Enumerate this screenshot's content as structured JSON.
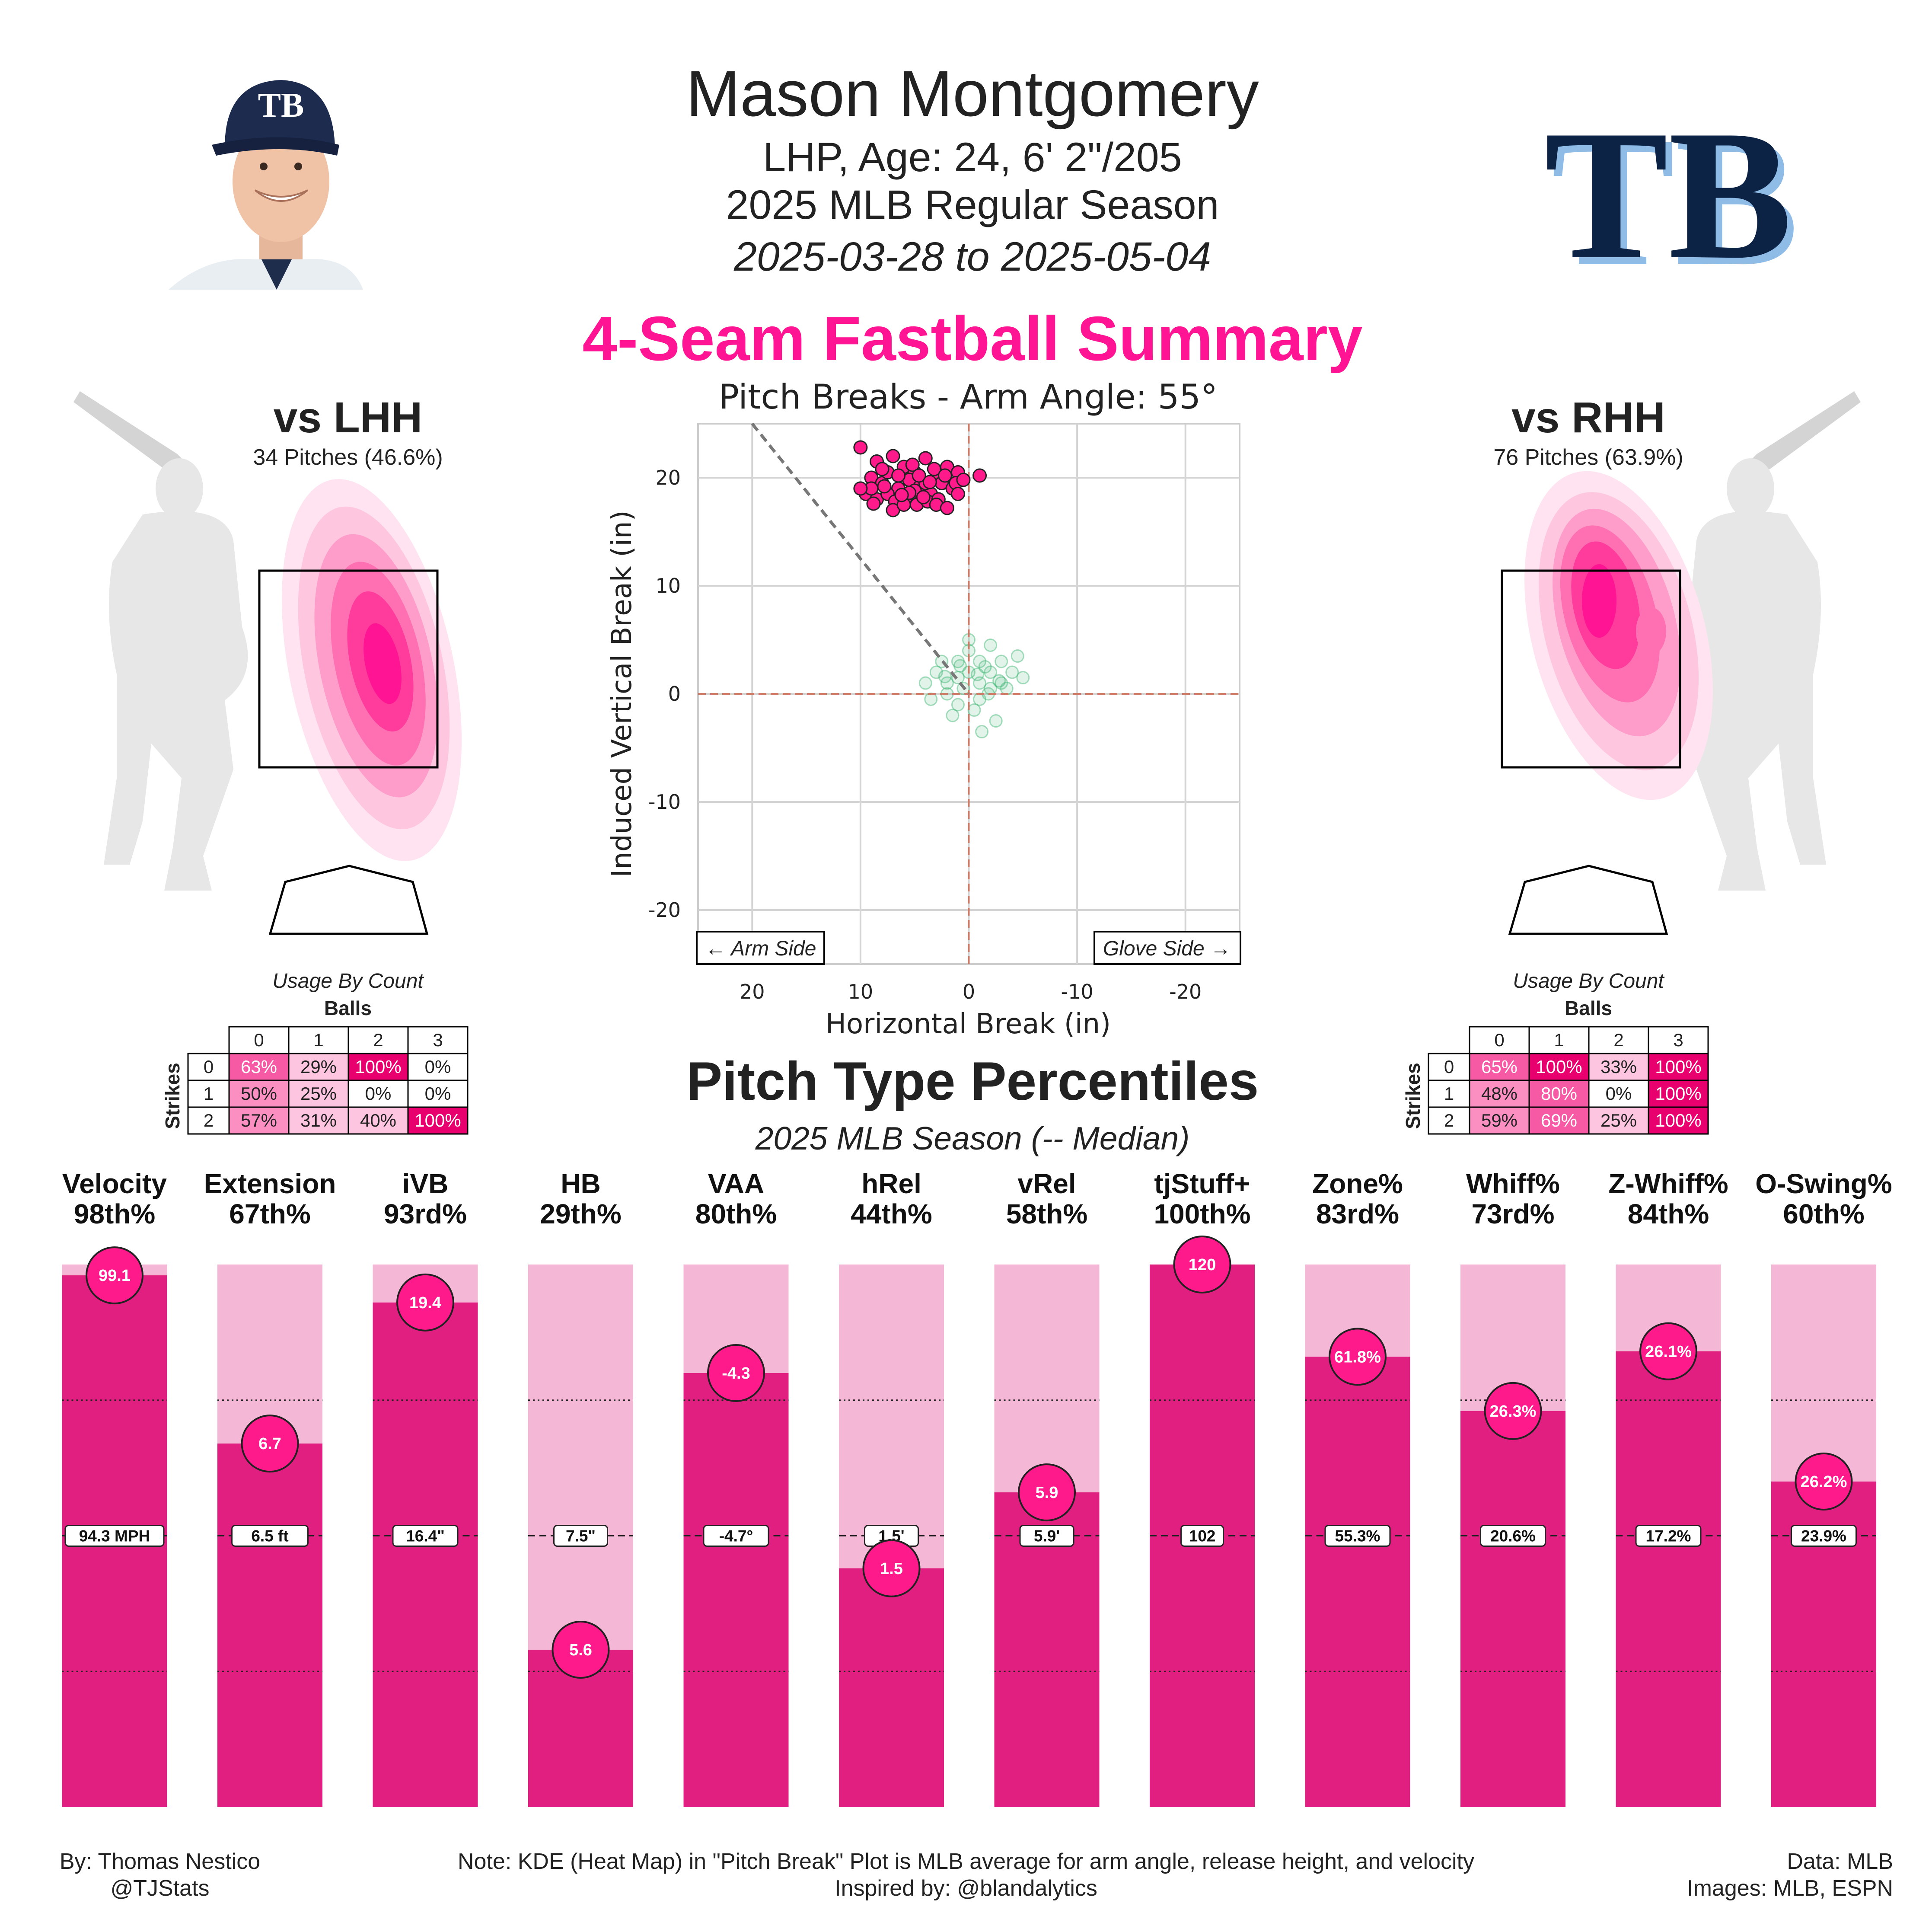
{
  "header": {
    "name": "Mason Montgomery",
    "line1": "LHP, Age: 24, 6' 2\"/205",
    "line2": "2025 MLB Regular Season",
    "line3": "2025-03-28 to 2025-05-04",
    "team_logo_text": "TB",
    "cap_logo_text": "TB"
  },
  "pitch_title": "4-Seam Fastball Summary",
  "colors": {
    "accent": "#ff1493",
    "bar_fill": "#e01f80",
    "bar_bg": "#f4b7d6",
    "kde_green": "#3cb371"
  },
  "lhh": {
    "title": "vs LHH",
    "sub": "34 Pitches (46.6%)",
    "usage_title": "Usage By Count",
    "balls_label": "Balls",
    "strikes_label": "Strikes",
    "col_headers": [
      "0",
      "1",
      "2",
      "3"
    ],
    "row_headers": [
      "0",
      "1",
      "2"
    ],
    "cells": [
      [
        "63%",
        "29%",
        "100%",
        "0%"
      ],
      [
        "50%",
        "25%",
        "0%",
        "0%"
      ],
      [
        "57%",
        "31%",
        "40%",
        "100%"
      ]
    ]
  },
  "rhh": {
    "title": "vs RHH",
    "sub": "76 Pitches (63.9%)",
    "usage_title": "Usage By Count",
    "balls_label": "Balls",
    "strikes_label": "Strikes",
    "col_headers": [
      "0",
      "1",
      "2",
      "3"
    ],
    "row_headers": [
      "0",
      "1",
      "2"
    ],
    "cells": [
      [
        "65%",
        "100%",
        "33%",
        "100%"
      ],
      [
        "48%",
        "80%",
        "0%",
        "100%"
      ],
      [
        "59%",
        "69%",
        "25%",
        "100%"
      ]
    ]
  },
  "section2": {
    "title": "Pitch Type Percentiles",
    "subtitle": "2025 MLB Season (-- Median)"
  },
  "footer": {
    "left1": "By: Thomas Nestico",
    "left2": "@TJStats",
    "center1": "Note: KDE (Heat Map) in \"Pitch Break\" Plot is MLB average for arm angle, release height, and velocity",
    "center2": "Inspired by: @blandalytics",
    "right1": "Data: MLB",
    "right2": "Images: MLB, ESPN"
  },
  "chart_data": [
    {
      "type": "scatter",
      "title": "Pitch Breaks - Arm Angle: 55°",
      "xlabel": "Horizontal Break (in)",
      "ylabel": "Induced Vertical Break (in)",
      "xlim": [
        25,
        -25
      ],
      "ylim": [
        -25,
        25
      ],
      "x_ticks": [
        20,
        10,
        0,
        -10,
        -20
      ],
      "y_ticks": [
        20,
        10,
        0,
        -10,
        -20
      ],
      "grid": true,
      "annotations": [
        "← Arm Side",
        "Glove Side →"
      ],
      "arm_angle_line": {
        "from": [
          20,
          25
        ],
        "to": [
          0,
          0
        ]
      },
      "series": [
        {
          "points": [
            [
              10,
              22.8
            ],
            [
              8.5,
              21.5
            ],
            [
              7,
              22
            ],
            [
              6,
              21
            ],
            [
              5,
              20.5
            ],
            [
              4,
              21.8
            ],
            [
              3,
              20
            ],
            [
              2,
              21
            ],
            [
              1,
              20.5
            ],
            [
              9,
              20
            ],
            [
              8,
              19.5
            ],
            [
              7.5,
              20.5
            ],
            [
              6.5,
              19
            ],
            [
              5.5,
              19.8
            ],
            [
              4.5,
              19.2
            ],
            [
              3.5,
              18.5
            ],
            [
              2.5,
              19.5
            ],
            [
              1.5,
              19
            ],
            [
              9.5,
              18.5
            ],
            [
              8.5,
              18
            ],
            [
              7.5,
              18.5
            ],
            [
              6.8,
              17.8
            ],
            [
              5.8,
              18.2
            ],
            [
              4.8,
              17.5
            ],
            [
              3.8,
              17.8
            ],
            [
              2.8,
              18
            ],
            [
              7,
              17
            ],
            [
              6,
              17.5
            ],
            [
              5,
              18.8
            ],
            [
              4,
              19.5
            ],
            [
              8,
              20.8
            ],
            [
              6.5,
              20.2
            ],
            [
              5.2,
              21.2
            ],
            [
              3.2,
              20.8
            ],
            [
              2.2,
              20.2
            ],
            [
              1.2,
              19.5
            ],
            [
              9,
              19
            ],
            [
              7.8,
              19.2
            ],
            [
              5.5,
              18.6
            ],
            [
              4.2,
              18.2
            ],
            [
              3,
              17.5
            ],
            [
              1,
              18.5
            ],
            [
              0.5,
              19.8
            ],
            [
              -1,
              20.2
            ],
            [
              10,
              19
            ],
            [
              8.8,
              17.6
            ],
            [
              6.2,
              18.4
            ],
            [
              2,
              17.2
            ],
            [
              4.6,
              20.2
            ],
            [
              3.6,
              19.6
            ]
          ]
        },
        {
          "name": "MLB average (KDE)",
          "points": [
            [
              3,
              2
            ],
            [
              2,
              1
            ],
            [
              1,
              3
            ],
            [
              0,
              2
            ],
            [
              -1,
              1
            ],
            [
              -2,
              2
            ],
            [
              -3,
              3
            ],
            [
              2,
              0
            ],
            [
              1,
              -1
            ],
            [
              -1,
              -0.5
            ],
            [
              -2,
              0.5
            ],
            [
              -3,
              1
            ],
            [
              0,
              4
            ],
            [
              -1,
              3
            ],
            [
              -2,
              4.5
            ],
            [
              -4,
              2
            ],
            [
              -5,
              1.5
            ],
            [
              4,
              1
            ],
            [
              1,
              1.5
            ],
            [
              -1.5,
              2.5
            ],
            [
              0.5,
              0.5
            ],
            [
              -0.5,
              -1.5
            ],
            [
              2.5,
              3
            ],
            [
              3.5,
              -0.5
            ],
            [
              -2.5,
              -2.5
            ],
            [
              -1.2,
              -3.5
            ],
            [
              0,
              5
            ],
            [
              -3.5,
              0.5
            ],
            [
              1.5,
              -2
            ],
            [
              -4.5,
              3.5
            ],
            [
              -0.8,
              1.8
            ],
            [
              0.8,
              2.6
            ],
            [
              -1.8,
              0
            ],
            [
              2.2,
              1.6
            ],
            [
              -2.8,
              1.2
            ]
          ]
        }
      ]
    },
    {
      "type": "bar",
      "title": "Pitch Type Percentiles",
      "ylim": [
        0,
        100
      ],
      "grid": true,
      "categories": [
        "Velocity",
        "Extension",
        "iVB",
        "HB",
        "VAA",
        "hRel",
        "vRel",
        "tjStuff+",
        "Zone%",
        "Whiff%",
        "Z-Whiff%",
        "O-Swing%"
      ],
      "percentile_labels": [
        "98th%",
        "67th%",
        "93rd%",
        "29th%",
        "80th%",
        "44th%",
        "58th%",
        "100th%",
        "83rd%",
        "73rd%",
        "84th%",
        "60th%"
      ],
      "percentiles": [
        98,
        67,
        93,
        29,
        80,
        44,
        58,
        100,
        83,
        73,
        84,
        60
      ],
      "values": [
        "99.1",
        "6.7",
        "19.4",
        "5.6",
        "-4.3",
        "1.5",
        "5.9",
        "120",
        "61.8%",
        "26.3%",
        "26.1%",
        "26.2%"
      ],
      "medians": [
        "94.3 MPH",
        "6.5 ft",
        "16.4\"",
        "7.5\"",
        "-4.7°",
        "1.5'",
        "5.9'",
        "102",
        "55.3%",
        "20.6%",
        "17.2%",
        "23.9%"
      ]
    }
  ]
}
